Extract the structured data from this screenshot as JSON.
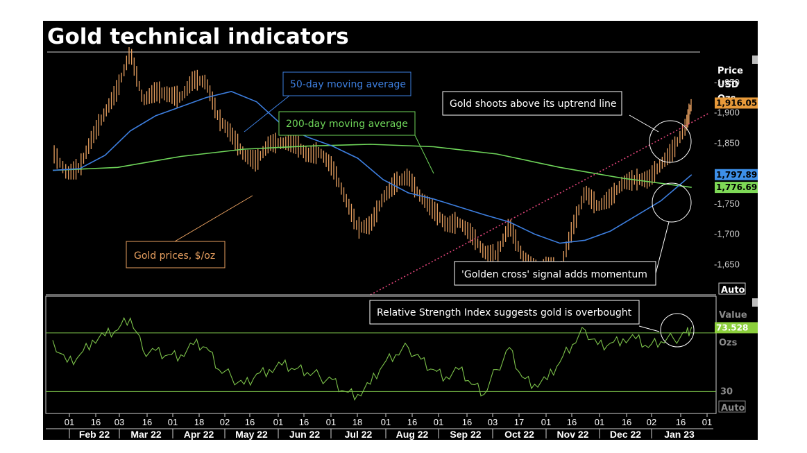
{
  "chart_data": [
    {
      "type": "line",
      "title": "Gold technical indicators",
      "ylabel_lines": [
        "Price",
        "USD",
        "Ozs"
      ],
      "ylim": [
        1600,
        2000
      ],
      "yticks": [
        1650,
        1700,
        1750,
        1850,
        1900,
        1950
      ],
      "ytick_labels": [
        "-1,650",
        "-1,700",
        "-1,750",
        "-1,850",
        "-1,900",
        "-1,950"
      ],
      "axis_mode": "Auto",
      "x_day_labels": [
        "01",
        "16",
        "03",
        "16",
        "01",
        "18",
        "02",
        "16",
        "01",
        "16",
        "01",
        "18",
        "01",
        "16",
        "01",
        "16",
        "03",
        "17",
        "01",
        "16",
        "01",
        "16",
        "02",
        "16",
        "01"
      ],
      "x_month_labels": [
        "Feb 22",
        "Mar 22",
        "Apr 22",
        "May 22",
        "Jun 22",
        "Jul 22",
        "Aug 22",
        "Sep 22",
        "Oct 22",
        "Nov 22",
        "Dec 22",
        "Jan 23"
      ],
      "series": [
        {
          "name": "Gold prices, $/oz",
          "color": "#e8a060",
          "last_value": "1,916.05",
          "x": [
            "2022-01-24",
            "2022-02-01",
            "2022-02-08",
            "2022-02-15",
            "2022-02-22",
            "2022-03-01",
            "2022-03-08",
            "2022-03-15",
            "2022-03-22",
            "2022-03-29",
            "2022-04-05",
            "2022-04-12",
            "2022-04-19",
            "2022-04-26",
            "2022-05-03",
            "2022-05-10",
            "2022-05-17",
            "2022-05-24",
            "2022-05-31",
            "2022-06-07",
            "2022-06-14",
            "2022-06-21",
            "2022-06-28",
            "2022-07-05",
            "2022-07-12",
            "2022-07-19",
            "2022-07-26",
            "2022-08-02",
            "2022-08-09",
            "2022-08-16",
            "2022-08-23",
            "2022-08-30",
            "2022-09-06",
            "2022-09-13",
            "2022-09-20",
            "2022-09-27",
            "2022-10-04",
            "2022-10-11",
            "2022-10-18",
            "2022-10-25",
            "2022-11-01",
            "2022-11-08",
            "2022-11-15",
            "2022-11-22",
            "2022-11-29",
            "2022-12-06",
            "2022-12-13",
            "2022-12-20",
            "2022-12-27",
            "2023-01-03",
            "2023-01-10",
            "2023-01-13"
          ],
          "values": [
            1835,
            1800,
            1810,
            1860,
            1900,
            1940,
            2000,
            1920,
            1935,
            1930,
            1925,
            1955,
            1950,
            1890,
            1865,
            1830,
            1820,
            1850,
            1850,
            1850,
            1830,
            1835,
            1810,
            1760,
            1710,
            1715,
            1760,
            1785,
            1795,
            1760,
            1740,
            1715,
            1720,
            1700,
            1670,
            1665,
            1715,
            1665,
            1640,
            1650,
            1640,
            1710,
            1770,
            1745,
            1760,
            1785,
            1790,
            1790,
            1815,
            1840,
            1880,
            1916
          ]
        },
        {
          "name": "50-day moving average",
          "color": "#3d7fe0",
          "last_value": "1,797.89",
          "x": [
            "2022-01-24",
            "2022-02-08",
            "2022-02-22",
            "2022-03-08",
            "2022-03-22",
            "2022-04-05",
            "2022-04-19",
            "2022-05-03",
            "2022-05-17",
            "2022-05-31",
            "2022-06-14",
            "2022-06-28",
            "2022-07-12",
            "2022-07-26",
            "2022-08-09",
            "2022-08-23",
            "2022-09-06",
            "2022-09-20",
            "2022-10-04",
            "2022-10-18",
            "2022-11-01",
            "2022-11-15",
            "2022-11-29",
            "2022-12-13",
            "2022-12-27",
            "2023-01-13"
          ],
          "values": [
            1805,
            1808,
            1830,
            1870,
            1895,
            1910,
            1925,
            1935,
            1918,
            1880,
            1860,
            1845,
            1825,
            1790,
            1768,
            1758,
            1745,
            1732,
            1720,
            1700,
            1685,
            1690,
            1705,
            1730,
            1755,
            1798
          ]
        },
        {
          "name": "200-day moving average",
          "color": "#6fd65a",
          "last_value": "1,776.69",
          "x": [
            "2022-01-24",
            "2022-03-01",
            "2022-04-05",
            "2022-05-10",
            "2022-06-14",
            "2022-07-19",
            "2022-08-23",
            "2022-09-27",
            "2022-11-01",
            "2022-12-06",
            "2023-01-13"
          ],
          "values": [
            1805,
            1810,
            1828,
            1840,
            1845,
            1848,
            1844,
            1832,
            1810,
            1792,
            1777
          ]
        }
      ],
      "trend_line": {
        "name": "uptrend line",
        "x": [
          "2022-07-19",
          "2023-01-23"
        ],
        "values": [
          1600,
          1900
        ]
      },
      "annotations": [
        "50-day moving average",
        "200-day moving average",
        "Gold shoots above its uptrend line",
        "Gold prices, $/oz",
        "'Golden cross' signal adds momentum"
      ]
    },
    {
      "type": "line",
      "title": "Relative Strength Index suggests gold is overbought",
      "ylabel_lines": [
        "Value",
        "Ozs"
      ],
      "ylim": [
        15,
        95
      ],
      "reference_lines": [
        30,
        70
      ],
      "yticks": [
        30
      ],
      "axis_mode": "Auto",
      "series": [
        {
          "name": "Relative Strength Index",
          "color": "#7cc24a",
          "last_value": "73.528",
          "x": [
            "2022-01-24",
            "2022-02-01",
            "2022-02-08",
            "2022-02-15",
            "2022-02-22",
            "2022-03-01",
            "2022-03-08",
            "2022-03-15",
            "2022-03-22",
            "2022-03-29",
            "2022-04-05",
            "2022-04-12",
            "2022-04-19",
            "2022-04-26",
            "2022-05-03",
            "2022-05-10",
            "2022-05-17",
            "2022-05-24",
            "2022-05-31",
            "2022-06-07",
            "2022-06-14",
            "2022-06-21",
            "2022-06-28",
            "2022-07-05",
            "2022-07-12",
            "2022-07-19",
            "2022-07-26",
            "2022-08-02",
            "2022-08-09",
            "2022-08-16",
            "2022-08-23",
            "2022-08-30",
            "2022-09-06",
            "2022-09-13",
            "2022-09-20",
            "2022-09-27",
            "2022-10-04",
            "2022-10-11",
            "2022-10-18",
            "2022-10-25",
            "2022-11-01",
            "2022-11-08",
            "2022-11-15",
            "2022-11-22",
            "2022-11-29",
            "2022-12-06",
            "2022-12-13",
            "2022-12-20",
            "2022-12-27",
            "2023-01-03",
            "2023-01-10",
            "2023-01-13"
          ],
          "values": [
            65,
            50,
            55,
            65,
            68,
            72,
            80,
            58,
            58,
            55,
            55,
            62,
            60,
            45,
            40,
            35,
            42,
            45,
            48,
            45,
            43,
            40,
            38,
            30,
            28,
            35,
            48,
            55,
            60,
            52,
            45,
            40,
            45,
            35,
            28,
            45,
            60,
            40,
            35,
            38,
            50,
            62,
            72,
            62,
            63,
            66,
            66,
            60,
            64,
            66,
            70,
            74
          ]
        }
      ]
    }
  ]
}
